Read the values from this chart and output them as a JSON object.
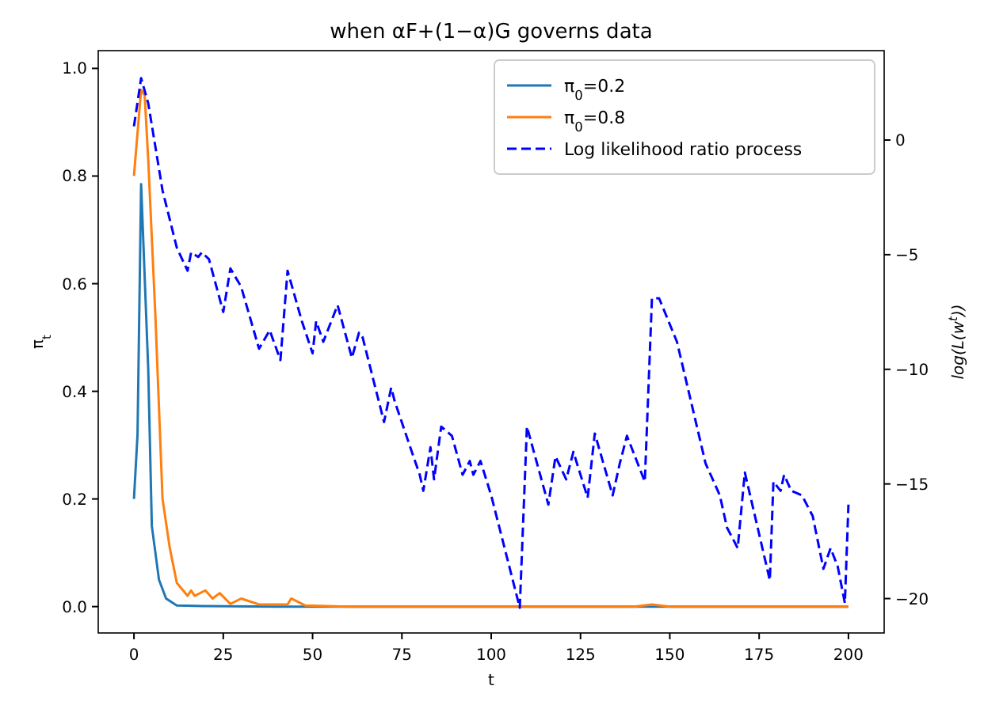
{
  "chart_data": {
    "type": "line",
    "title": "when αF+(1−α)G governs data",
    "xlabel": "t",
    "ylabel": "π$_{t}$",
    "y2label": "log(L(w$^{t}$))",
    "xlim": [
      -10,
      210
    ],
    "xticks": [
      0,
      25,
      50,
      75,
      100,
      125,
      150,
      175,
      200
    ],
    "ylim": [
      -0.049,
      1.033
    ],
    "yticks": [
      {
        "value": 0,
        "label": "0.0"
      },
      {
        "value": 0.2,
        "label": "0.2"
      },
      {
        "value": 0.4,
        "label": "0.4"
      },
      {
        "value": 0.6,
        "label": "0.6"
      },
      {
        "value": 0.8,
        "label": "0.8"
      },
      {
        "value": 1,
        "label": "1.0"
      }
    ],
    "y2lim": [
      -21.5,
      3.9
    ],
    "y2ticks": [
      {
        "value": -20,
        "label": "−20"
      },
      {
        "value": -15,
        "label": "−15"
      },
      {
        "value": -10,
        "label": "−10"
      },
      {
        "value": -5,
        "label": "−5"
      },
      {
        "value": 0,
        "label": "0"
      }
    ],
    "grid": false,
    "legend": "top right",
    "series": [
      {
        "name": "π$_{0}$=0.2",
        "color": "#1f77b4",
        "line_style": "solid",
        "x": [
          0,
          1,
          2,
          4,
          5,
          7,
          9,
          12,
          20,
          40,
          200
        ],
        "values": [
          0.2,
          0.32,
          0.785,
          0.44,
          0.15,
          0.05,
          0.015,
          0.002,
          0.001,
          0,
          0
        ]
      },
      {
        "name": "π$_{0}$=0.8",
        "color": "#ff7f0e",
        "line_style": "solid",
        "x": [
          0,
          2,
          3,
          4,
          6,
          8,
          10,
          12,
          15,
          16,
          17,
          20,
          22,
          24,
          27,
          30,
          35,
          43,
          44,
          48,
          60,
          140,
          145,
          150,
          200
        ],
        "values": [
          0.8,
          0.96,
          0.95,
          0.83,
          0.54,
          0.2,
          0.11,
          0.044,
          0.02,
          0.03,
          0.02,
          0.03,
          0.015,
          0.025,
          0.005,
          0.015,
          0.004,
          0.004,
          0.015,
          0.002,
          0,
          0,
          0.004,
          0,
          0
        ]
      },
      {
        "name": "Log likelihood ratio process",
        "color": "#0000ff",
        "line_style": "dashed",
        "axis": "y2",
        "x": [
          0,
          2,
          4,
          8,
          12,
          15,
          16,
          18,
          19,
          21,
          25,
          27,
          30,
          35,
          38,
          41,
          43,
          47,
          50,
          51,
          53,
          57,
          61,
          63,
          64,
          70,
          72,
          73,
          78,
          80,
          81,
          83,
          84,
          86,
          89,
          92,
          94,
          95,
          97,
          100,
          108,
          110,
          116,
          118,
          121,
          123,
          127,
          129,
          134,
          136,
          138,
          143,
          145,
          147,
          152,
          160,
          164,
          166,
          169,
          171,
          178,
          179,
          181,
          182,
          184,
          187,
          190,
          193,
          195,
          197,
          199,
          200
        ],
        "values": [
          0.6,
          2.7,
          1.6,
          -2.2,
          -4.7,
          -5.7,
          -4.9,
          -5.1,
          -4.9,
          -5.2,
          -7.5,
          -5.6,
          -6.4,
          -9.1,
          -8.3,
          -9.6,
          -5.7,
          -7.9,
          -9.3,
          -7.9,
          -8.8,
          -7.2,
          -9.5,
          -8.4,
          -8.6,
          -12.3,
          -10.8,
          -11.4,
          -13.7,
          -14.6,
          -15.3,
          -13.4,
          -14.8,
          -12.5,
          -12.9,
          -14.6,
          -14.0,
          -14.6,
          -14.0,
          -15.5,
          -20.4,
          -12.5,
          -15.9,
          -13.8,
          -14.8,
          -13.6,
          -15.6,
          -12.8,
          -15.5,
          -14.1,
          -12.9,
          -14.9,
          -6.9,
          -6.9,
          -8.8,
          -14.1,
          -15.5,
          -16.9,
          -17.8,
          -14.5,
          -19.2,
          -14.9,
          -15.3,
          -14.6,
          -15.3,
          -15.5,
          -16.4,
          -18.7,
          -17.8,
          -18.6,
          -20.2,
          -15.9
        ]
      }
    ]
  }
}
